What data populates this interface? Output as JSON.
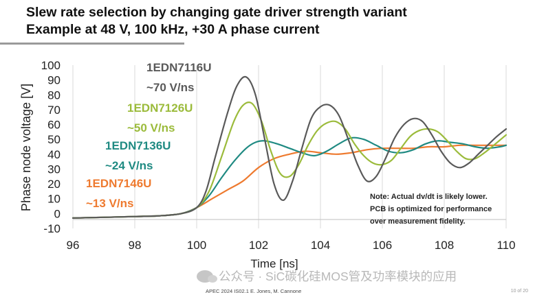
{
  "title": {
    "line1": "Slew rate selection by changing gate driver strength variant",
    "line2": "Example at 48 V, 100 kHz, +30 A phase current"
  },
  "chart_data": {
    "type": "line",
    "xlabel": "Time [ns]",
    "ylabel": "Phase node voltage [V]",
    "xlim": [
      96,
      110
    ],
    "ylim": [
      -10,
      100
    ],
    "xticks": [
      "96",
      "98",
      "100",
      "102",
      "104",
      "106",
      "108",
      "110"
    ],
    "yticks": [
      "100",
      "90",
      "80",
      "70",
      "60",
      "50",
      "40",
      "30",
      "20",
      "10",
      "0",
      "-10"
    ],
    "grid": "vertical",
    "series": [
      {
        "name": "1EDN7116U",
        "rate": "~70 V/ns",
        "color": "#595959",
        "x": [
          96,
          97,
          98,
          98.8,
          99.5,
          100,
          100.3,
          100.6,
          101,
          101.3,
          101.6,
          101.9,
          102.2,
          102.5,
          102.8,
          103.1,
          103.4,
          103.7,
          104,
          104.3,
          104.6,
          104.9,
          105.2,
          105.5,
          105.8,
          106.1,
          106.4,
          106.7,
          107,
          107.3,
          107.6,
          107.9,
          108.2,
          108.5,
          108.8,
          109.1,
          109.4,
          109.7,
          110
        ],
        "y": [
          -3,
          -2.5,
          -2,
          -1.5,
          0,
          4,
          15,
          38,
          68,
          86,
          92,
          80,
          50,
          20,
          9,
          22,
          44,
          64,
          72,
          73,
          66,
          50,
          33,
          22,
          25,
          37,
          51,
          60,
          64,
          62,
          53,
          42,
          34,
          31,
          34,
          40,
          46,
          52,
          57
        ]
      },
      {
        "name": "1EDN7126U",
        "rate": "~50 V/ns",
        "color": "#9bbb3b",
        "x": [
          96,
          97,
          98,
          98.8,
          99.5,
          100,
          100.4,
          100.8,
          101.2,
          101.5,
          101.8,
          102.1,
          102.4,
          102.7,
          103,
          103.3,
          103.6,
          103.9,
          104.2,
          104.5,
          104.8,
          105.1,
          105.4,
          105.7,
          106,
          106.3,
          106.6,
          106.9,
          107.2,
          107.5,
          107.8,
          108.1,
          108.4,
          108.7,
          109,
          109.3,
          109.6,
          110
        ],
        "y": [
          -3,
          -2.5,
          -2,
          -1.5,
          0,
          4,
          15,
          38,
          62,
          73,
          74,
          62,
          42,
          27,
          25,
          33,
          46,
          56,
          61,
          62,
          57,
          47,
          39,
          34,
          33,
          36,
          44,
          52,
          56,
          57,
          55,
          49,
          42,
          37,
          37,
          41,
          46,
          53
        ]
      },
      {
        "name": "1EDN7136U",
        "rate": "~24 V/ns",
        "color": "#1f8a82",
        "x": [
          96,
          97,
          98,
          98.8,
          99.5,
          100,
          100.4,
          100.8,
          101.2,
          101.6,
          101.9,
          102.2,
          102.6,
          103,
          103.4,
          103.8,
          104.2,
          104.6,
          105,
          105.4,
          105.8,
          106.2,
          106.6,
          107,
          107.4,
          107.8,
          108.2,
          108.6,
          109,
          109.4,
          109.8,
          110
        ],
        "y": [
          -3,
          -2.5,
          -2,
          -1.5,
          0,
          4,
          12,
          24,
          35,
          44,
          48,
          49,
          47,
          44,
          41,
          39,
          42,
          47,
          51,
          50,
          46,
          42,
          41,
          43,
          47,
          49,
          48,
          47,
          45,
          44,
          45,
          46
        ]
      },
      {
        "name": "1EDN7146U",
        "rate": "~13 V/ns",
        "color": "#ee7a2f",
        "x": [
          96,
          97,
          98,
          98.8,
          99.5,
          100,
          100.5,
          101,
          101.5,
          102,
          102.5,
          103,
          103.5,
          104,
          104.5,
          105,
          105.5,
          106,
          106.5,
          107,
          107.5,
          108,
          108.5,
          109,
          109.5,
          110
        ],
        "y": [
          -3,
          -2.5,
          -2,
          -1.5,
          0,
          4,
          10,
          16,
          22,
          31,
          37,
          40,
          42,
          41,
          40,
          41,
          43,
          44,
          44,
          44,
          45,
          45,
          46,
          46,
          46,
          46
        ]
      }
    ],
    "annotation": [
      "Note: Actual dv/dt is likely lower.",
      "PCB is optimized for performance",
      "over measurement fidelity."
    ]
  },
  "watermark": "公众号 · SiC碳化硅MOS管及功率模块的应用",
  "footer": "APEC 2024    IS02.1    E. Jones, M. Cannone",
  "page_number": "10 of 20"
}
